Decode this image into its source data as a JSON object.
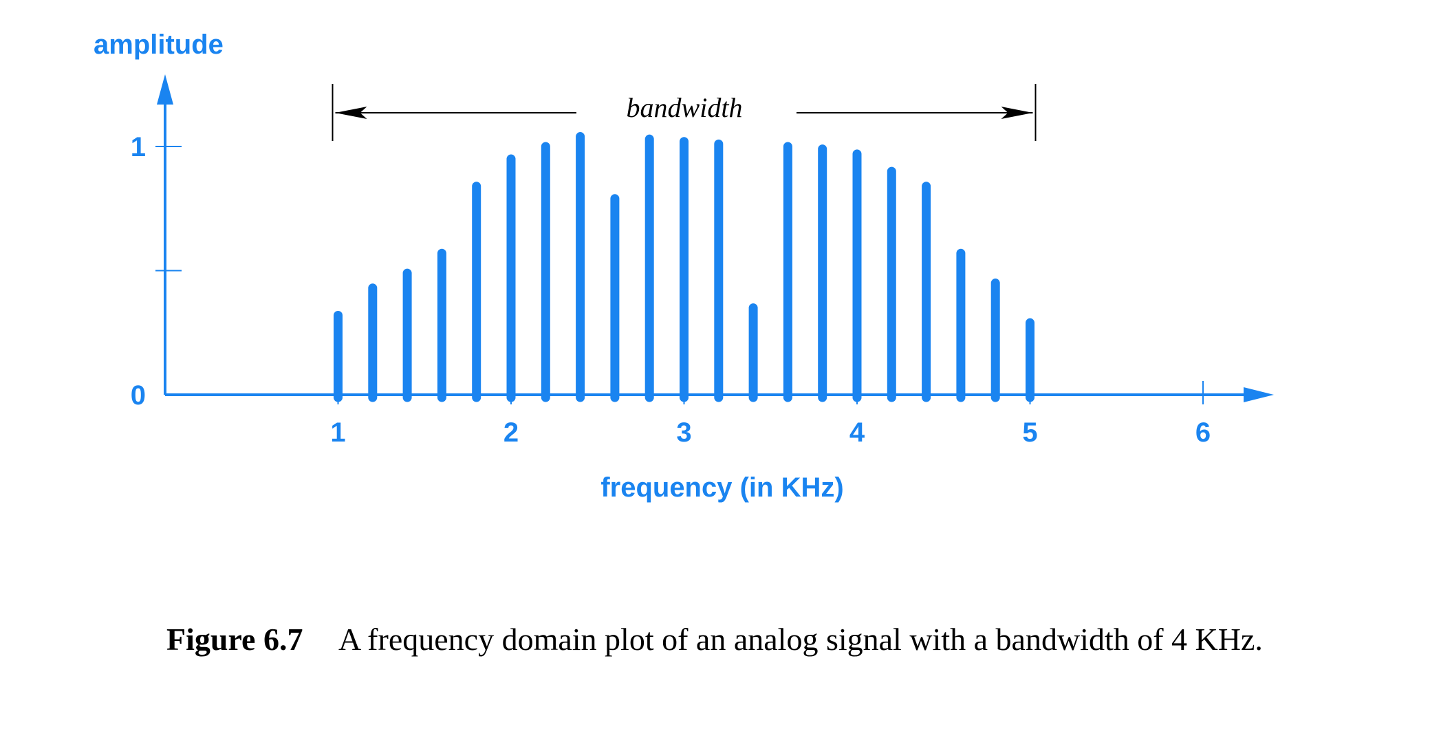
{
  "chart_data": {
    "type": "bar",
    "ylabel": "amplitude",
    "xlabel": "frequency (in KHz)",
    "x_ticks": [
      "1",
      "2",
      "3",
      "4",
      "5",
      "6"
    ],
    "y_ticks": [
      "0",
      "1"
    ],
    "xlim": [
      0,
      6.4
    ],
    "ylim": [
      0,
      1.05
    ],
    "series": [
      {
        "x": [
          1.0,
          1.2,
          1.4,
          1.6,
          1.8,
          2.0,
          2.2,
          2.4,
          2.6,
          2.8,
          3.0,
          3.2,
          3.4,
          3.6,
          3.8,
          4.0,
          4.2,
          4.4,
          4.6,
          4.8,
          5.0
        ],
        "values": [
          0.32,
          0.43,
          0.49,
          0.57,
          0.84,
          0.95,
          1.0,
          1.04,
          0.79,
          1.03,
          1.02,
          1.01,
          0.35,
          1.0,
          0.99,
          0.97,
          0.9,
          0.84,
          0.57,
          0.45,
          0.29
        ]
      }
    ],
    "annotation": {
      "text": "bandwidth",
      "from": 1,
      "to": 5
    },
    "grid": false,
    "color": "#1a84f0"
  },
  "caption": {
    "number": "Figure 6.7",
    "text": "A frequency domain plot of an analog signal with a bandwidth of 4 KHz."
  }
}
